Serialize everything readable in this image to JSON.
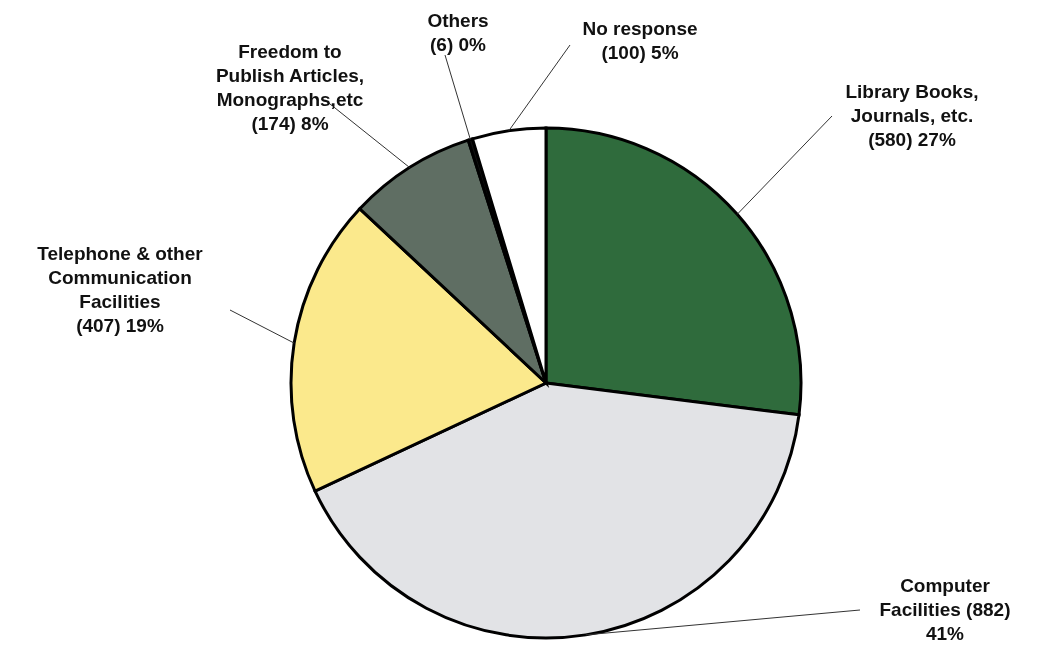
{
  "chart_data": {
    "type": "pie",
    "categories": [
      "Library Books, Journals, etc.",
      "Computer Facilities",
      "Telephone & other Communication Facilities",
      "Freedom to Publish Articles, Monographs,etc",
      "Others",
      "No response"
    ],
    "values": [
      580,
      882,
      407,
      174,
      6,
      100
    ],
    "value_labels": [
      "(580) 27%",
      "(882) 41%",
      "(407) 19%",
      "(174) 8%",
      "(6) 0%",
      "(100) 5%"
    ],
    "colors": [
      "#2f6b3c",
      "#e2e3e6",
      "#fbe98c",
      "#5f6e63",
      "#111111",
      "#ffffff"
    ]
  }
}
